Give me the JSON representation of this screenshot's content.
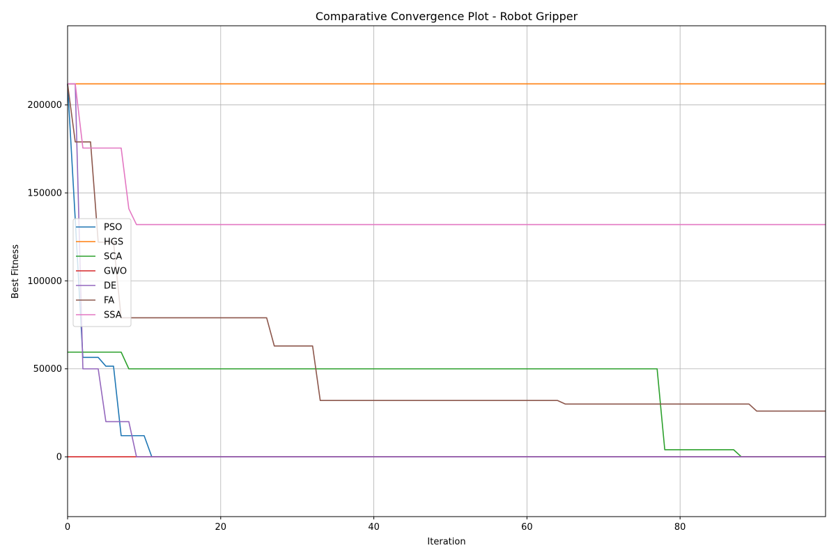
{
  "chart_data": {
    "type": "line",
    "title": "Comparative Convergence Plot - Robot Gripper",
    "xlabel": "Iteration",
    "ylabel": "Best Fitness",
    "xlim": [
      0,
      99
    ],
    "ylim": [
      -34000,
      245000
    ],
    "xticks": [
      0,
      20,
      40,
      60,
      80
    ],
    "yticks": [
      0,
      50000,
      100000,
      150000,
      200000
    ],
    "grid": true,
    "legend_position": "center-left",
    "series": [
      {
        "name": "PSO",
        "color": "#1f77b4",
        "points": [
          [
            0,
            212000
          ],
          [
            1,
            135000
          ],
          [
            2,
            56500
          ],
          [
            4,
            56500
          ],
          [
            5,
            51500
          ],
          [
            6,
            51500
          ],
          [
            7,
            12000
          ],
          [
            10,
            12000
          ],
          [
            11,
            0
          ],
          [
            99,
            0
          ]
        ]
      },
      {
        "name": "HGS",
        "color": "#ff7f0e",
        "points": [
          [
            0,
            212000
          ],
          [
            99,
            212000
          ]
        ]
      },
      {
        "name": "SCA",
        "color": "#2ca02c",
        "points": [
          [
            0,
            59500
          ],
          [
            7,
            59500
          ],
          [
            8,
            50000
          ],
          [
            77,
            50000
          ],
          [
            78,
            4000
          ],
          [
            87,
            4000
          ],
          [
            88,
            0
          ],
          [
            99,
            0
          ]
        ]
      },
      {
        "name": "GWO",
        "color": "#d62728",
        "points": [
          [
            0,
            0
          ],
          [
            99,
            0
          ]
        ]
      },
      {
        "name": "DE",
        "color": "#9467bd",
        "points": [
          [
            0,
            212000
          ],
          [
            1,
            212000
          ],
          [
            2,
            50000
          ],
          [
            4,
            50000
          ],
          [
            5,
            20000
          ],
          [
            8,
            20000
          ],
          [
            9,
            0
          ],
          [
            99,
            0
          ]
        ]
      },
      {
        "name": "FA",
        "color": "#8c564b",
        "points": [
          [
            0,
            212000
          ],
          [
            1,
            179000
          ],
          [
            3,
            179000
          ],
          [
            4,
            122000
          ],
          [
            6,
            122000
          ],
          [
            7,
            79000
          ],
          [
            26,
            79000
          ],
          [
            27,
            63000
          ],
          [
            32,
            63000
          ],
          [
            33,
            32000
          ],
          [
            64,
            32000
          ],
          [
            65,
            30000
          ],
          [
            89,
            30000
          ],
          [
            90,
            26000
          ],
          [
            99,
            26000
          ]
        ]
      },
      {
        "name": "SSA",
        "color": "#e377c2",
        "points": [
          [
            0,
            212000
          ],
          [
            1,
            212000
          ],
          [
            2,
            175500
          ],
          [
            7,
            175500
          ],
          [
            8,
            141000
          ],
          [
            9,
            132000
          ],
          [
            99,
            132000
          ]
        ]
      }
    ]
  }
}
